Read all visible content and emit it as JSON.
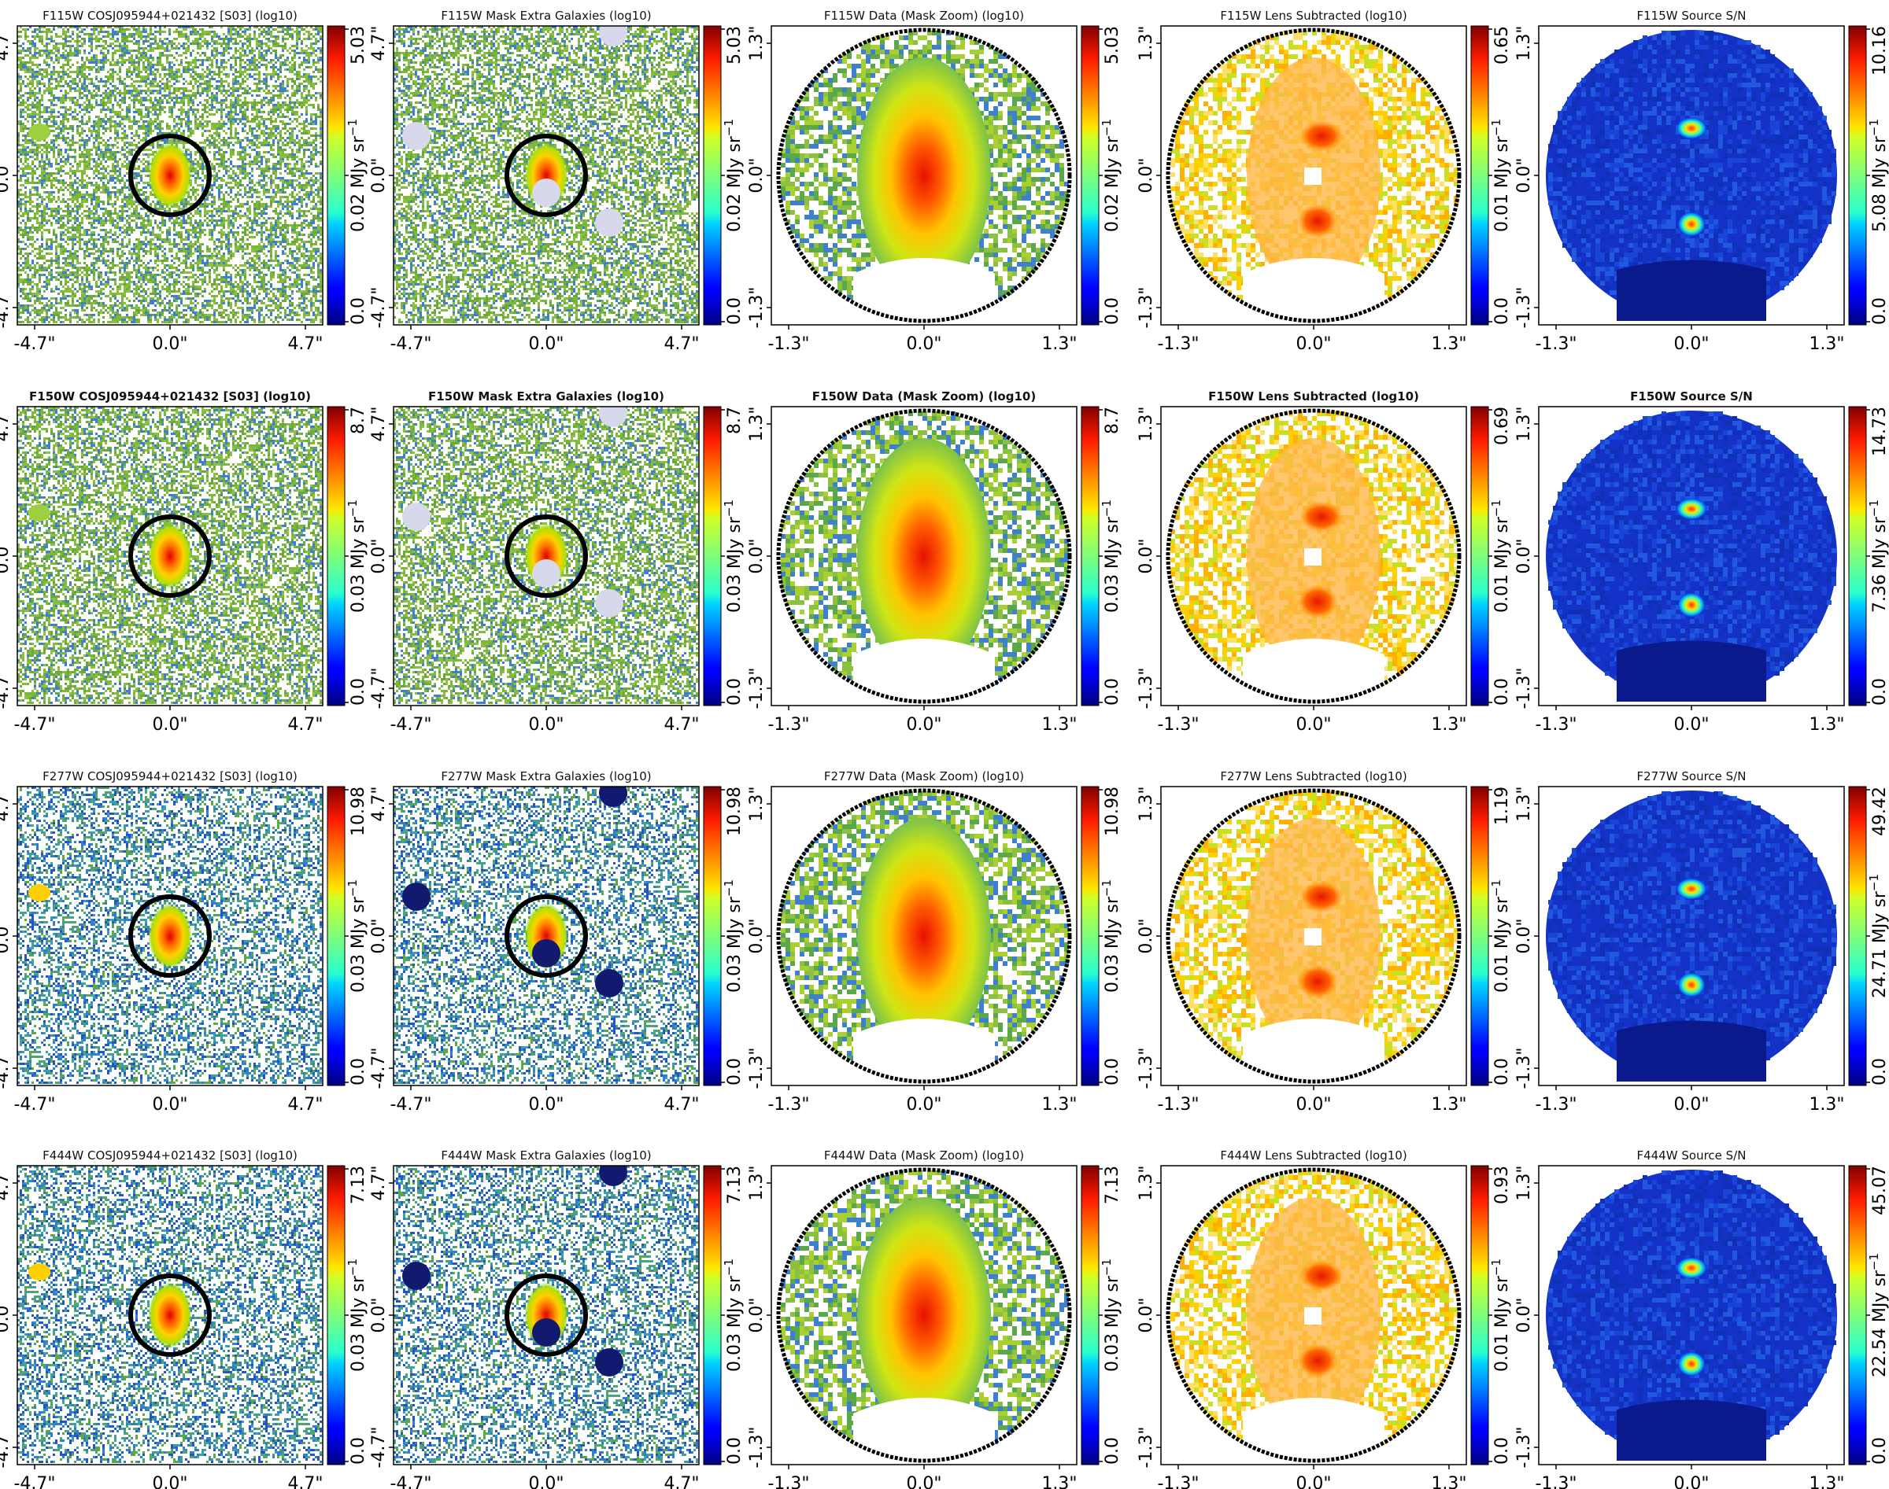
{
  "chart_data": {
    "type": "heatmap",
    "description_rows": [
      "F115W",
      "F150W",
      "F277W",
      "F444W"
    ],
    "columns": [
      "data",
      "mask",
      "zoom",
      "lens_subtracted",
      "source_sn"
    ],
    "colormap": "jet",
    "colorbar_unit": "MJy sr⁻¹",
    "colorbar_unit_label": "MJy sr",
    "colorbar_unit_exp": "−1",
    "rows": [
      {
        "band": "F115W",
        "bold_titles": false,
        "panels": [
          {
            "kind": "data",
            "title": "F115W COSJ095944+021432 [S03] (log10)",
            "extent_arcsec": 4.7,
            "xticks": [
              "-4.7\"",
              "0.0\"",
              "4.7\""
            ],
            "yticks": [
              "4.7\"",
              "0.0\"",
              "-4.7\""
            ],
            "cbar": {
              "min": "0.0",
              "mid": "0.02",
              "max": "5.03",
              "vmin": 0.0,
              "vmax": 5.03
            }
          },
          {
            "kind": "mask",
            "title": "F115W Mask Extra Galaxies (log10)",
            "extent_arcsec": 4.7,
            "xticks": [
              "-4.7\"",
              "0.0\"",
              "4.7\""
            ],
            "yticks": [
              "4.7\"",
              "0.0\"",
              "-4.7\""
            ],
            "cbar": {
              "min": "0.0",
              "mid": "0.02",
              "max": "5.03",
              "vmin": 0.0,
              "vmax": 5.03
            }
          },
          {
            "kind": "zoom",
            "title": "F115W Data (Mask Zoom) (log10)",
            "extent_arcsec": 1.3,
            "xticks": [
              "-1.3\"",
              "0.0\"",
              "1.3\""
            ],
            "yticks": [
              "1.3\"",
              "0.0\"",
              "-1.3\""
            ],
            "cbar": {
              "min": "0.0",
              "mid": "0.02",
              "max": "5.03",
              "vmin": 0.0,
              "vmax": 5.03
            }
          },
          {
            "kind": "lens",
            "title": "F115W Lens Subtracted (log10)",
            "extent_arcsec": 1.3,
            "xticks": [
              "-1.3\"",
              "0.0\"",
              "1.3\""
            ],
            "yticks": [
              "1.3\"",
              "0.0\"",
              "-1.3\""
            ],
            "cbar": {
              "min": "0.0",
              "mid": "0.01",
              "max": "0.65",
              "vmin": 0.0,
              "vmax": 0.65
            }
          },
          {
            "kind": "sn",
            "title": "F115W Source S/N",
            "extent_arcsec": 1.3,
            "xticks": [
              "-1.3\"",
              "0.0\"",
              "1.3\""
            ],
            "yticks": [
              "1.3\"",
              "0.0\"",
              "-1.3\""
            ],
            "cbar": {
              "min": "0.0",
              "mid": "5.08",
              "max": "10.16",
              "vmin": 0.0,
              "vmax": 10.16
            }
          }
        ]
      },
      {
        "band": "F150W",
        "bold_titles": true,
        "panels": [
          {
            "kind": "data",
            "title": "F150W COSJ095944+021432 [S03] (log10)",
            "extent_arcsec": 4.7,
            "xticks": [
              "-4.7\"",
              "0.0\"",
              "4.7\""
            ],
            "yticks": [
              "4.7\"",
              "0.0\"",
              "-4.7\""
            ],
            "cbar": {
              "min": "0.0",
              "mid": "0.03",
              "max": "8.7",
              "vmin": 0.0,
              "vmax": 8.7
            }
          },
          {
            "kind": "mask",
            "title": "F150W Mask Extra Galaxies (log10)",
            "extent_arcsec": 4.7,
            "xticks": [
              "-4.7\"",
              "0.0\"",
              "4.7\""
            ],
            "yticks": [
              "4.7\"",
              "0.0\"",
              "-4.7\""
            ],
            "cbar": {
              "min": "0.0",
              "mid": "0.03",
              "max": "8.7",
              "vmin": 0.0,
              "vmax": 8.7
            }
          },
          {
            "kind": "zoom",
            "title": "F150W Data (Mask Zoom) (log10)",
            "extent_arcsec": 1.3,
            "xticks": [
              "-1.3\"",
              "0.0\"",
              "1.3\""
            ],
            "yticks": [
              "1.3\"",
              "0.0\"",
              "-1.3\""
            ],
            "cbar": {
              "min": "0.0",
              "mid": "0.03",
              "max": "8.7",
              "vmin": 0.0,
              "vmax": 8.7
            }
          },
          {
            "kind": "lens",
            "title": "F150W Lens Subtracted (log10)",
            "extent_arcsec": 1.3,
            "xticks": [
              "-1.3\"",
              "0.0\"",
              "1.3\""
            ],
            "yticks": [
              "1.3\"",
              "0.0\"",
              "-1.3\""
            ],
            "cbar": {
              "min": "0.0",
              "mid": "0.01",
              "max": "0.69",
              "vmin": 0.0,
              "vmax": 0.69
            }
          },
          {
            "kind": "sn",
            "title": "F150W Source S/N",
            "extent_arcsec": 1.3,
            "xticks": [
              "-1.3\"",
              "0.0\"",
              "1.3\""
            ],
            "yticks": [
              "1.3\"",
              "0.0\"",
              "-1.3\""
            ],
            "cbar": {
              "min": "0.0",
              "mid": "7.36",
              "max": "14.73",
              "vmin": 0.0,
              "vmax": 14.73
            }
          }
        ]
      },
      {
        "band": "F277W",
        "bold_titles": false,
        "panels": [
          {
            "kind": "data",
            "title": "F277W COSJ095944+021432 [S03] (log10)",
            "extent_arcsec": 4.7,
            "xticks": [
              "-4.7\"",
              "0.0\"",
              "4.7\""
            ],
            "yticks": [
              "4.7\"",
              "0.0\"",
              "-4.7\""
            ],
            "cbar": {
              "min": "0.0",
              "mid": "0.03",
              "max": "10.98",
              "vmin": 0.0,
              "vmax": 10.98
            }
          },
          {
            "kind": "mask",
            "title": "F277W Mask Extra Galaxies (log10)",
            "extent_arcsec": 4.7,
            "xticks": [
              "-4.7\"",
              "0.0\"",
              "4.7\""
            ],
            "yticks": [
              "4.7\"",
              "0.0\"",
              "-4.7\""
            ],
            "cbar": {
              "min": "0.0",
              "mid": "0.03",
              "max": "10.98",
              "vmin": 0.0,
              "vmax": 10.98
            }
          },
          {
            "kind": "zoom",
            "title": "F277W Data (Mask Zoom) (log10)",
            "extent_arcsec": 1.3,
            "xticks": [
              "-1.3\"",
              "0.0\"",
              "1.3\""
            ],
            "yticks": [
              "1.3\"",
              "0.0\"",
              "-1.3\""
            ],
            "cbar": {
              "min": "0.0",
              "mid": "0.03",
              "max": "10.98",
              "vmin": 0.0,
              "vmax": 10.98
            }
          },
          {
            "kind": "lens",
            "title": "F277W Lens Subtracted (log10)",
            "extent_arcsec": 1.3,
            "xticks": [
              "-1.3\"",
              "0.0\"",
              "1.3\""
            ],
            "yticks": [
              "1.3\"",
              "0.0\"",
              "-1.3\""
            ],
            "cbar": {
              "min": "0.0",
              "mid": "0.01",
              "max": "1.19",
              "vmin": 0.0,
              "vmax": 1.19
            }
          },
          {
            "kind": "sn",
            "title": "F277W Source S/N",
            "extent_arcsec": 1.3,
            "xticks": [
              "-1.3\"",
              "0.0\"",
              "1.3\""
            ],
            "yticks": [
              "1.3\"",
              "0.0\"",
              "-1.3\""
            ],
            "cbar": {
              "min": "0.0",
              "mid": "24.71",
              "max": "49.42",
              "vmin": 0.0,
              "vmax": 49.42
            }
          }
        ]
      },
      {
        "band": "F444W",
        "bold_titles": false,
        "panels": [
          {
            "kind": "data",
            "title": "F444W COSJ095944+021432 [S03] (log10)",
            "extent_arcsec": 4.7,
            "xticks": [
              "-4.7\"",
              "0.0\"",
              "4.7\""
            ],
            "yticks": [
              "4.7\"",
              "0.0\"",
              "-4.7\""
            ],
            "cbar": {
              "min": "0.0",
              "mid": "0.03",
              "max": "7.13",
              "vmin": 0.0,
              "vmax": 7.13
            }
          },
          {
            "kind": "mask",
            "title": "F444W Mask Extra Galaxies (log10)",
            "extent_arcsec": 4.7,
            "xticks": [
              "-4.7\"",
              "0.0\"",
              "4.7\""
            ],
            "yticks": [
              "4.7\"",
              "0.0\"",
              "-4.7\""
            ],
            "cbar": {
              "min": "0.0",
              "mid": "0.03",
              "max": "7.13",
              "vmin": 0.0,
              "vmax": 7.13
            }
          },
          {
            "kind": "zoom",
            "title": "F444W Data (Mask Zoom) (log10)",
            "extent_arcsec": 1.3,
            "xticks": [
              "-1.3\"",
              "0.0\"",
              "1.3\""
            ],
            "yticks": [
              "1.3\"",
              "0.0\"",
              "-1.3\""
            ],
            "cbar": {
              "min": "0.0",
              "mid": "0.03",
              "max": "7.13",
              "vmin": 0.0,
              "vmax": 7.13
            }
          },
          {
            "kind": "lens",
            "title": "F444W Lens Subtracted (log10)",
            "extent_arcsec": 1.3,
            "xticks": [
              "-1.3\"",
              "0.0\"",
              "1.3\""
            ],
            "yticks": [
              "1.3\"",
              "0.0\"",
              "-1.3\""
            ],
            "cbar": {
              "min": "0.0",
              "mid": "0.01",
              "max": "0.93",
              "vmin": 0.0,
              "vmax": 0.93
            }
          },
          {
            "kind": "sn",
            "title": "F444W Source S/N",
            "extent_arcsec": 1.3,
            "xticks": [
              "-1.3\"",
              "0.0\"",
              "1.3\""
            ],
            "yticks": [
              "1.3\"",
              "0.0\"",
              "-1.3\""
            ],
            "cbar": {
              "min": "0.0",
              "mid": "22.54",
              "max": "45.07",
              "vmin": 0.0,
              "vmax": 45.07
            }
          }
        ]
      }
    ]
  }
}
